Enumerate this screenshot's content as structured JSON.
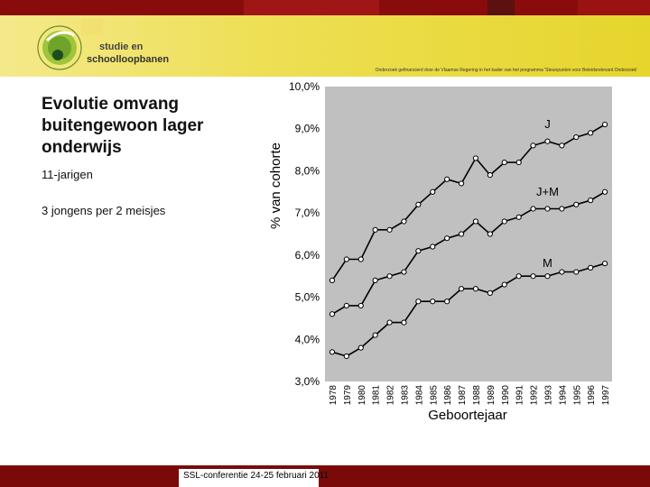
{
  "slide": {
    "title_lines": [
      "Evolutie omvang",
      "buitengewoon lager",
      "onderwijs"
    ],
    "subtitle_age": "11-jarigen",
    "subtitle_ratio": "3 jongens per 2 meisjes",
    "funder_text": "Onderzoek gefinancierd door de Vlaamse Regering in het kader van het programma 'Steunpunten voor Beleidsrelevant Onderzoek'",
    "footer": "SSL-conferentie 24-25 februari 2011",
    "logo_text_top": "studie en",
    "logo_text_bottom": "schoolloopbanen"
  },
  "colors": {
    "top_bar": "#8a0b0b",
    "header_yellow": "#eedf55",
    "footer_red": "#7a0a0a",
    "plot_bg": "#c0c0c0",
    "line": "#000000"
  },
  "chart_data": {
    "type": "line",
    "xlabel": "Geboortejaar",
    "ylabel": "% van cohorte",
    "ylim": [
      3.0,
      10.0
    ],
    "yticks": [
      "3,0%",
      "4,0%",
      "5,0%",
      "6,0%",
      "7,0%",
      "8,0%",
      "9,0%",
      "10,0%"
    ],
    "categories": [
      "1978",
      "1979",
      "1980",
      "1981",
      "1982",
      "1983",
      "1984",
      "1985",
      "1986",
      "1987",
      "1988",
      "1989",
      "1990",
      "1991",
      "1992",
      "1993",
      "1994",
      "1995",
      "1996",
      "1997"
    ],
    "grid": false,
    "series": [
      {
        "name": "J",
        "values": [
          5.4,
          5.9,
          5.9,
          6.6,
          6.6,
          6.8,
          7.2,
          7.5,
          7.8,
          7.7,
          8.3,
          7.9,
          8.2,
          8.2,
          8.6,
          8.7,
          8.6,
          8.8,
          8.9,
          9.1
        ]
      },
      {
        "name": "J+M",
        "values": [
          4.6,
          4.8,
          4.8,
          5.4,
          5.5,
          5.6,
          6.1,
          6.2,
          6.4,
          6.5,
          6.8,
          6.5,
          6.8,
          6.9,
          7.1,
          7.1,
          7.1,
          7.2,
          7.3,
          7.5
        ]
      },
      {
        "name": "M",
        "values": [
          3.7,
          3.6,
          3.8,
          4.1,
          4.4,
          4.4,
          4.9,
          4.9,
          4.9,
          5.2,
          5.2,
          5.1,
          5.3,
          5.5,
          5.5,
          5.5,
          5.6,
          5.6,
          5.7,
          5.8
        ]
      }
    ]
  }
}
